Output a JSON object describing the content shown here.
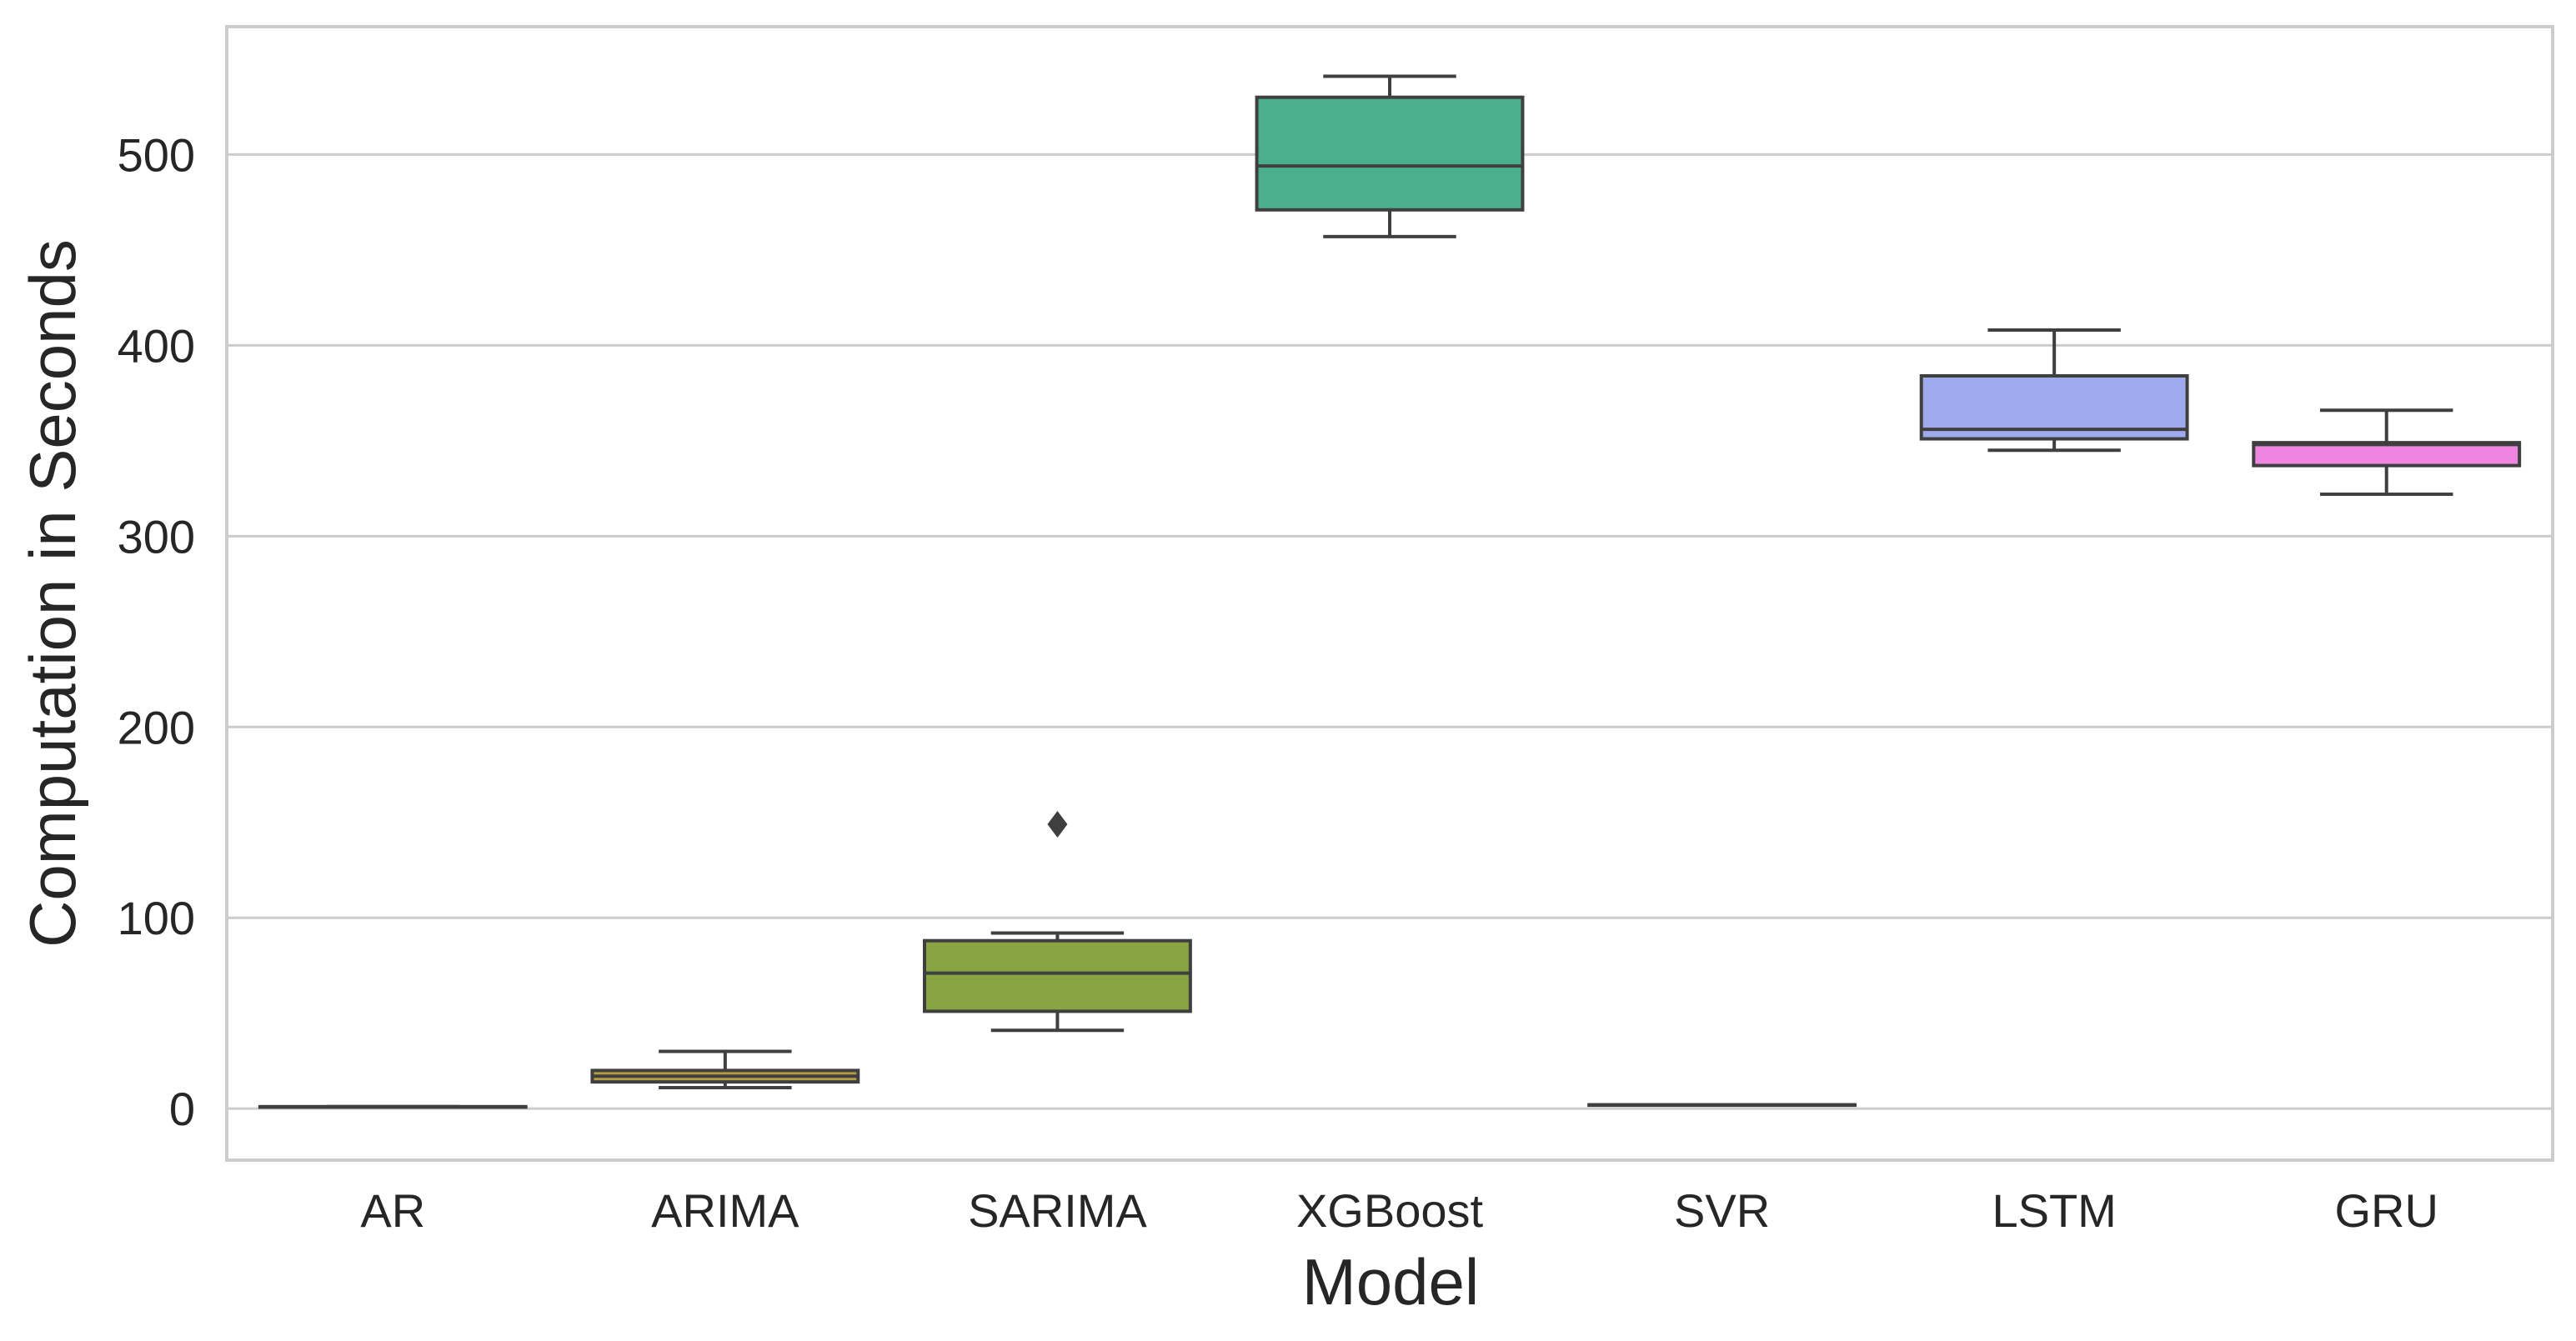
{
  "chart_data": {
    "type": "box",
    "xlabel": "Model",
    "ylabel": "Computation in Seconds",
    "ylim": [
      -27,
      567
    ],
    "yticks": [
      0,
      100,
      200,
      300,
      400,
      500
    ],
    "grid": true,
    "categories": [
      "AR",
      "ARIMA",
      "SARIMA",
      "XGBoost",
      "SVR",
      "LSTM",
      "GRU"
    ],
    "boxes": [
      {
        "name": "AR",
        "color": "#c4847d",
        "whisker_low": 1,
        "q1": 1,
        "median": 1,
        "q3": 1,
        "whisker_high": 1,
        "outliers": []
      },
      {
        "name": "ARIMA",
        "color": "#b79a45",
        "whisker_low": 11,
        "q1": 14,
        "median": 17,
        "q3": 20,
        "whisker_high": 30,
        "outliers": []
      },
      {
        "name": "SARIMA",
        "color": "#89a442",
        "whisker_low": 41,
        "q1": 51,
        "median": 71,
        "q3": 88,
        "whisker_high": 92,
        "outliers": [
          149
        ]
      },
      {
        "name": "XGBoost",
        "color": "#4baf8e",
        "whisker_low": 457,
        "q1": 471,
        "median": 494,
        "q3": 530,
        "whisker_high": 541,
        "outliers": []
      },
      {
        "name": "SVR",
        "color": "#63aad0",
        "whisker_low": 2,
        "q1": 2,
        "median": 2,
        "q3": 2,
        "whisker_high": 2,
        "outliers": []
      },
      {
        "name": "LSTM",
        "color": "#9eaaec",
        "whisker_low": 345,
        "q1": 351,
        "median": 356,
        "q3": 384,
        "whisker_high": 408,
        "outliers": []
      },
      {
        "name": "GRU",
        "color": "#ee86e0",
        "whisker_low": 322,
        "q1": 337,
        "median": 348,
        "q3": 349,
        "whisker_high": 366,
        "outliers": []
      }
    ]
  }
}
